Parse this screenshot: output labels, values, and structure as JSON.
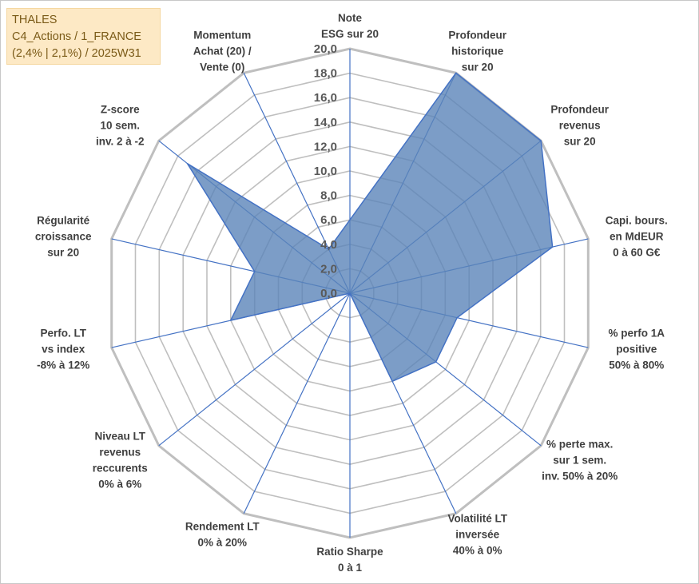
{
  "title_box": {
    "lines": [
      "THALES",
      "C4_Actions / 1_FRANCE",
      "(2,4% | 2,1%) / 2025W31"
    ]
  },
  "colors": {
    "grid": "#bfbfbf",
    "spoke": "#4472c4",
    "fill": "#5b84b9",
    "fill_opacity": 0.8,
    "stroke": "#4472c4",
    "title_bg": "#fde9c5",
    "title_text": "#7a5a17"
  },
  "chart_data": {
    "type": "radar",
    "title": "",
    "rmin": 0,
    "rmax": 20,
    "tick_step": 2,
    "ticks": [
      "0,0",
      "2,0",
      "4,0",
      "6,0",
      "8,0",
      "10,0",
      "12,0",
      "14,0",
      "16,0",
      "18,0",
      "20,0"
    ],
    "axes": [
      {
        "label": [
          "Note",
          "ESG sur 20"
        ],
        "value": 6.0
      },
      {
        "label": [
          "Profondeur",
          "historique",
          "sur 20"
        ],
        "value": 20.0
      },
      {
        "label": [
          "Profondeur",
          "revenus",
          "sur 20"
        ],
        "value": 20.0
      },
      {
        "label": [
          "Capi. bours.",
          "en MdEUR",
          "0 à 60 G€"
        ],
        "value": 17.0
      },
      {
        "label": [
          "% perfo 1A",
          "positive",
          "50% à 80%"
        ],
        "value": 9.0
      },
      {
        "label": [
          "% perte max.",
          "sur 1 sem.",
          "inv. 50% à 20%"
        ],
        "value": 9.0
      },
      {
        "label": [
          "Volatilité LT",
          "inversée",
          "40% à 0%"
        ],
        "value": 8.0
      },
      {
        "label": [
          "Ratio Sharpe",
          "0 à 1"
        ],
        "value": 0.0
      },
      {
        "label": [
          "Rendement LT",
          "0% à 20%"
        ],
        "value": 0.0
      },
      {
        "label": [
          "Niveau LT",
          "revenus",
          "reccurents",
          "0% à 6%"
        ],
        "value": 0.0
      },
      {
        "label": [
          "Perfo. LT",
          "vs index",
          "-8% à 12%"
        ],
        "value": 10.0
      },
      {
        "label": [
          "Régularité",
          "croissance",
          "sur 20"
        ],
        "value": 8.0
      },
      {
        "label": [
          "Z-score",
          "10 sem.",
          "inv. 2 à -2"
        ],
        "value": 17.0
      },
      {
        "label": [
          "Momentum",
          "Achat (20) /",
          "Vente (0)"
        ],
        "value": 4.0
      }
    ]
  }
}
